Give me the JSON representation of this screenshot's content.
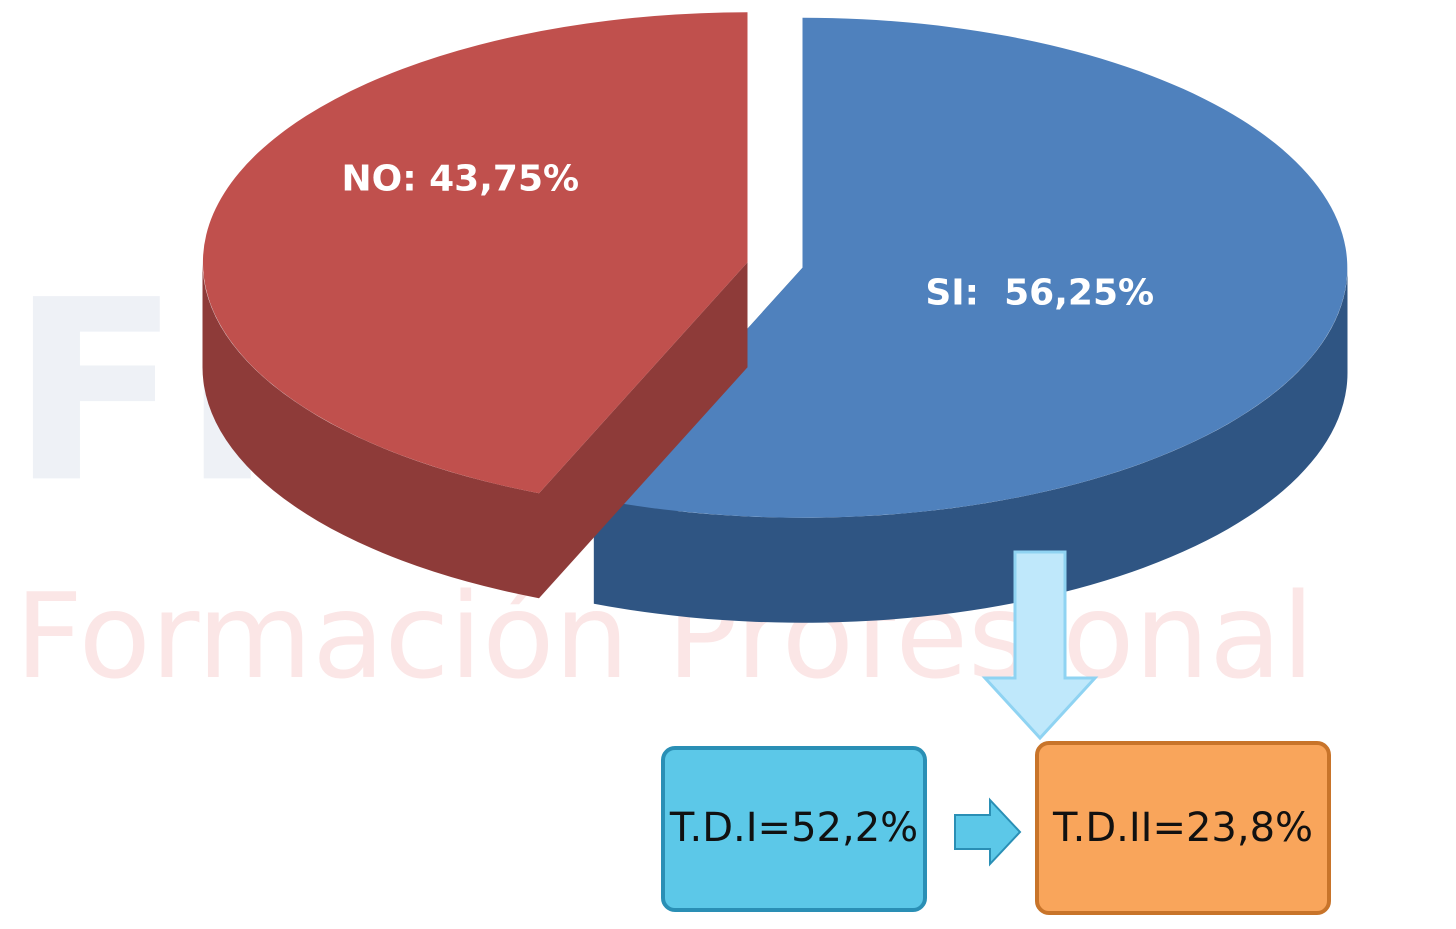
{
  "chart_data": {
    "type": "pie3d",
    "watermark": [
      "FP",
      "Formación Profesional"
    ],
    "values": [
      43.75,
      56.25
    ],
    "value_labels": [
      "NO: 43,75%",
      "SI:  56,25%"
    ],
    "colors": [
      "#c0504d",
      "#4f81bd"
    ],
    "side_colors": [
      "#8e3b39",
      "#2f5583"
    ],
    "annotations": [
      "T.D.I=52,2%",
      "T.D.II=23,8%"
    ]
  }
}
